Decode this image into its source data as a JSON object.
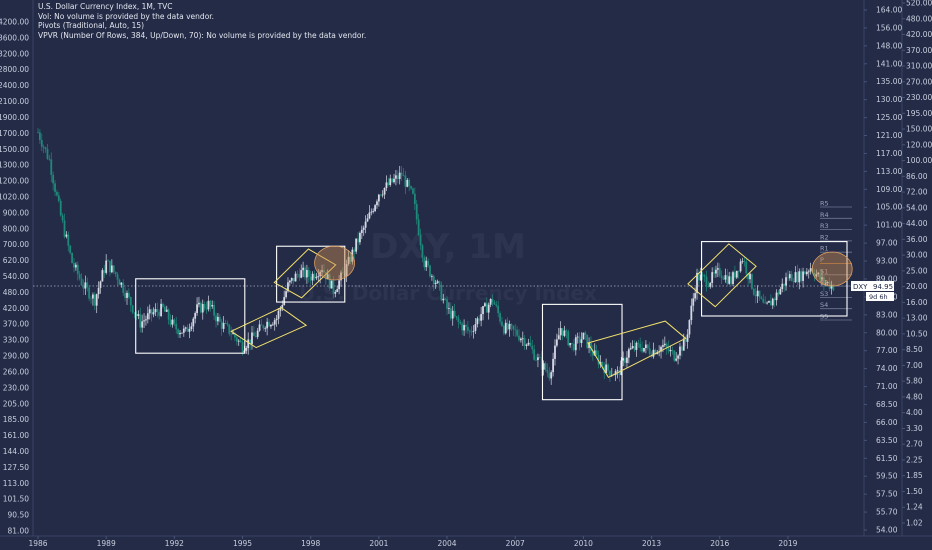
{
  "legend": {
    "title": "U.S. Dollar Currency Index, 1M, TVC",
    "line2": "Vol: No volume is provided by the data vendor.",
    "line3": "Pivots (Traditional, Auto, 15)",
    "line4": "VPVR (Number Of Rows, 384, Up/Down, 70): No volume is provided by the data vendor."
  },
  "watermark": {
    "symbol": "DXY, 1M",
    "name": "U.S. Dollar Currency Index"
  },
  "chart_data": {
    "type": "candlestick",
    "title": "U.S. Dollar Currency Index, 1M, TVC",
    "x_axis": {
      "labels": [
        "1986",
        "1989",
        "1992",
        "1995",
        "1998",
        "2001",
        "2004",
        "2007",
        "2010",
        "2013",
        "2016",
        "2019"
      ],
      "range": [
        1986.0,
        2021.6
      ]
    },
    "left_axis": {
      "labels": [
        "4200.00",
        "3600.00",
        "3200.00",
        "2800.00",
        "2400.00",
        "2100.00",
        "1900.00",
        "1700.00",
        "1500.00",
        "1300.00",
        "1200.00",
        "1020.00",
        "900.00",
        "800.00",
        "700.00",
        "620.00",
        "540.00",
        "480.00",
        "420.00",
        "370.00",
        "330.00",
        "290.00",
        "260.00",
        "230.00",
        "205.00",
        "185.00",
        "161.00",
        "144.00",
        "127.50",
        "113.00",
        "101.50",
        "90.50",
        "81.00"
      ]
    },
    "right_axis_inner": {
      "labels": [
        "164.00",
        "156.00",
        "148.00",
        "141.00",
        "135.00",
        "130.00",
        "125.00",
        "121.00",
        "117.00",
        "113.00",
        "109.00",
        "105.00",
        "101.00",
        "97.00",
        "93.00",
        "89.00",
        "86.00",
        "83.00",
        "80.00",
        "77.00",
        "74.00",
        "71.00",
        "68.50",
        "66.00",
        "63.50",
        "61.50",
        "59.50",
        "57.50",
        "55.70",
        "54.00"
      ]
    },
    "right_axis_outer": {
      "labels": [
        "520.00",
        "480.00",
        "420.00",
        "370.00",
        "310.00",
        "270.00",
        "230.00",
        "195.00",
        "150.00",
        "120.00",
        "100.00",
        "86.00",
        "72.00",
        "54.00",
        "44.00",
        "36.00",
        "30.00",
        "25.00",
        "20.00",
        "16.00",
        "13.00",
        "10.50",
        "8.50",
        "7.00",
        "5.80",
        "4.80",
        "4.00",
        "3.30",
        "2.70",
        "2.25",
        "1.85",
        "1.50",
        "1.24",
        "1.02"
      ]
    },
    "last_price": {
      "symbol": "DXY",
      "value": "94.95",
      "countdown": "9d 6h"
    },
    "pivots": [
      "R5",
      "R4",
      "R3",
      "R2",
      "R1",
      "P",
      "S1",
      "S2",
      "S3",
      "S4",
      "S5"
    ],
    "series": [
      {
        "name": "DXY",
        "x": [
          1986.0,
          1986.5,
          1987.0,
          1987.5,
          1988.0,
          1988.5,
          1989.0,
          1989.5,
          1990.0,
          1990.5,
          1991.0,
          1991.5,
          1992.0,
          1992.5,
          1993.0,
          1993.5,
          1994.0,
          1994.5,
          1995.0,
          1995.5,
          1996.0,
          1996.5,
          1997.0,
          1997.5,
          1998.0,
          1998.5,
          1999.0,
          1999.5,
          2000.0,
          2000.5,
          2001.0,
          2001.5,
          2002.0,
          2002.5,
          2003.0,
          2003.5,
          2004.0,
          2004.5,
          2005.0,
          2005.5,
          2006.0,
          2006.5,
          2007.0,
          2007.5,
          2008.0,
          2008.5,
          2009.0,
          2009.5,
          2010.0,
          2010.5,
          2011.0,
          2011.5,
          2012.0,
          2012.5,
          2013.0,
          2013.5,
          2014.0,
          2014.5,
          2015.0,
          2015.5,
          2016.0,
          2016.5,
          2017.0,
          2017.5,
          2018.0,
          2018.5,
          2019.0,
          2019.5,
          2020.0,
          2020.5,
          2021.0
        ],
        "y": [
          128,
          122,
          110,
          100,
          95,
          92,
          100,
          97,
          92,
          87,
          89,
          90,
          86,
          85,
          90,
          91,
          87,
          85,
          82,
          84,
          87,
          88,
          95,
          98,
          97,
          99,
          94,
          98,
          104,
          109,
          115,
          117,
          119,
          114,
          100,
          96,
          90,
          87,
          85,
          89,
          92,
          86,
          85,
          83,
          79,
          76,
          86,
          82,
          84,
          80,
          77,
          76,
          81,
          82,
          81,
          82,
          80,
          83,
          97,
          96,
          98,
          96,
          101,
          94,
          90,
          93,
          97,
          97,
          99,
          96,
          94.95
        ]
      }
    ],
    "annotations": {
      "boxes": [
        {
          "x0": 1990.3,
          "x1": 1995.1,
          "ylo": 80.5,
          "yhi": 96.5
        },
        {
          "x0": 1996.5,
          "x1": 1999.5,
          "ylo": 91.5,
          "yhi": 103.5
        },
        {
          "x0": 2008.2,
          "x1": 2011.7,
          "ylo": 70.5,
          "yhi": 91.0
        },
        {
          "x0": 2015.2,
          "x1": 2021.6,
          "ylo": 88.5,
          "yhi": 104.5
        }
      ],
      "channels": [
        {
          "points": [
            [
              1994.5,
              85.2
            ],
            [
              1996.7,
              90.3
            ],
            [
              1997.8,
              86.5
            ],
            [
              1995.6,
              81.7
            ]
          ]
        },
        {
          "points": [
            [
              1996.4,
              95.7
            ],
            [
              1997.9,
              102.9
            ],
            [
              1999.1,
              99.5
            ],
            [
              1997.6,
              92.4
            ]
          ]
        },
        {
          "points": [
            [
              2010.2,
              82.7
            ],
            [
              2013.6,
              87.4
            ],
            [
              2014.5,
              83.7
            ],
            [
              2011.1,
              75.3
            ]
          ]
        },
        {
          "points": [
            [
              2014.6,
              95.4
            ],
            [
              2016.4,
              104.0
            ],
            [
              2017.6,
              99.2
            ],
            [
              2015.8,
              90.5
            ]
          ]
        }
      ],
      "ellipses": [
        {
          "x": 1999.05,
          "y": 99.9
        },
        {
          "x": 2020.95,
          "y": 98.6
        }
      ]
    }
  }
}
